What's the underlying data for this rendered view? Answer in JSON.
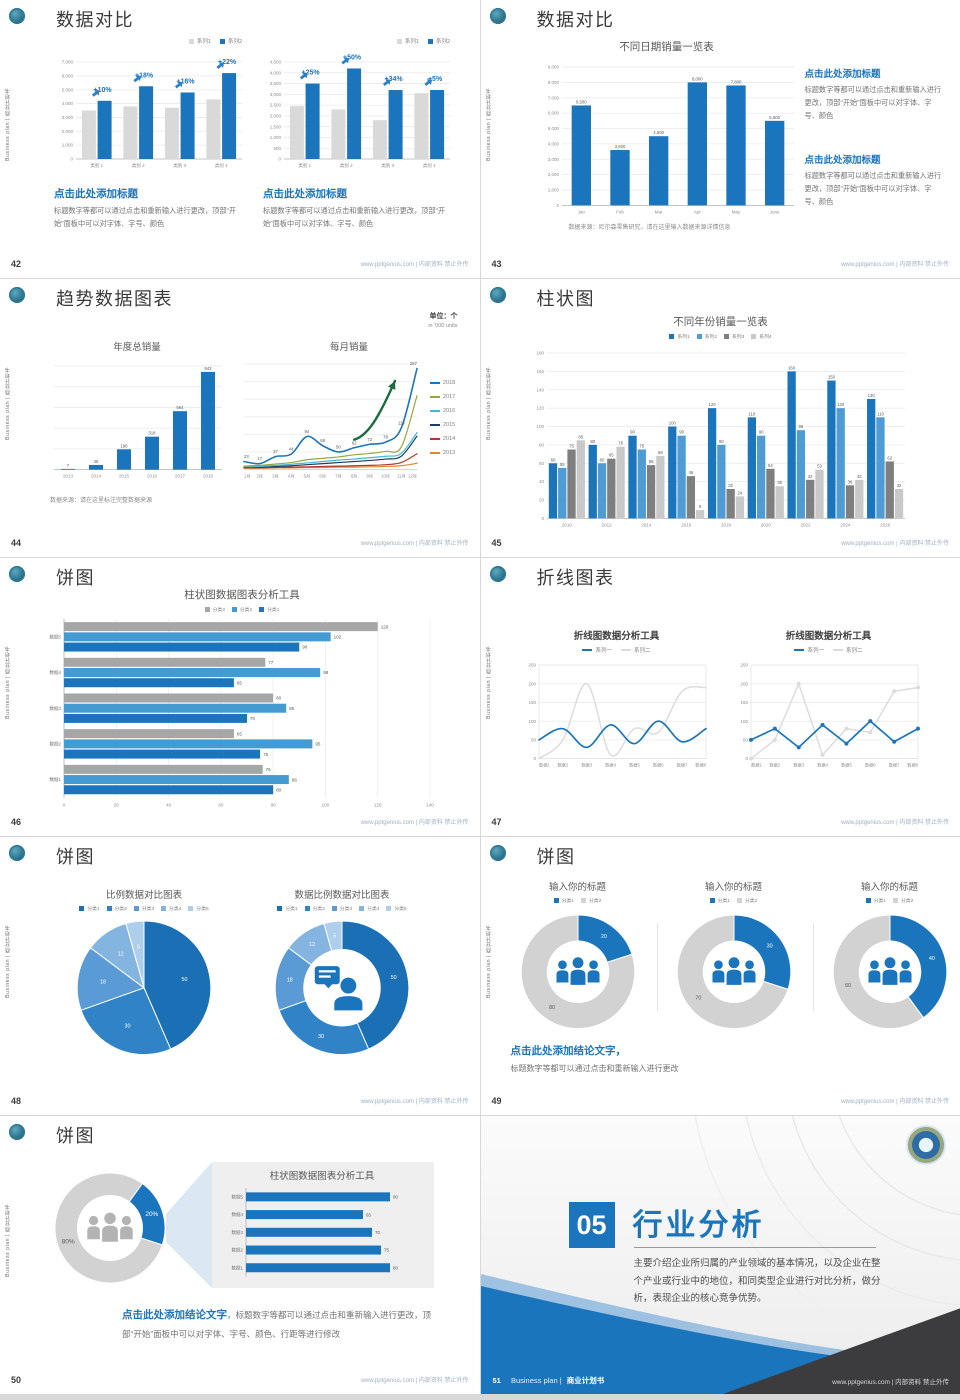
{
  "accent": "#1b75bc",
  "side_text": "Business plan | 商业计划书",
  "footer_text": "www.pptgenius.com | 内部资料 禁止外传",
  "slides": {
    "s42": {
      "page": "42",
      "title": "数据对比",
      "blocks": [
        {
          "heading": "点击此处添加标题",
          "body": "标题数字等都可以通过点击和重新输入进行更改，顶部“开始”面板中可以对字体、字号、颜色"
        },
        {
          "heading": "点击此处添加标题",
          "body": "标题数字等都可以通过点击和重新输入进行更改，顶部“开始”面板中可以对字体、字号、颜色"
        }
      ]
    },
    "s43": {
      "page": "43",
      "title": "数据对比",
      "source": "数据来源：尼尔森零售研究，请在这里输入数据来源详情信息",
      "blocks": [
        {
          "heading": "点击此处添加标题",
          "body": "标题数字等都可以通过点击和重新输入进行更改，顶部“开始”面板中可以对字体、字号、颜色"
        },
        {
          "heading": "点击此处添加标题",
          "body": "标题数字等都可以通过点击和重新输入进行更改，顶部“开始”面板中可以对字体、字号、颜色"
        }
      ]
    },
    "s44": {
      "page": "44",
      "title": "趋势数据图表",
      "unit1": "单位：个",
      "unit2": "in '000 units",
      "source": "数据来源：请在这里标注完整数据来源"
    },
    "s45": {
      "page": "45",
      "title": "柱状图"
    },
    "s46": {
      "page": "46",
      "title": "饼图"
    },
    "s47": {
      "page": "47",
      "title": "折线图表"
    },
    "s48": {
      "page": "48",
      "title": "饼图"
    },
    "s49": {
      "page": "49",
      "title": "饼图",
      "conclusion_heading": "点击此处添加结论文字，",
      "conclusion_body": "标题数字等都可以通过点击和重新输入进行更改"
    },
    "s50": {
      "page": "50",
      "title": "饼图",
      "conclusion_heading": "点击此处添加结论文字",
      "conclusion_body": "，标题数字等都可以通过点击和重新输入进行更改，顶部“开始”面板中可以对字体、字号、颜色、行距等进行修改"
    },
    "s51": {
      "page": "51",
      "number": "05",
      "title": "行业分析",
      "body": "主要介绍企业所归属的产业领域的基本情况，以及企业在整个产业或行业中的地位，和同类型企业进行对比分析，做分析，表现企业的核心竞争优势。",
      "footer_en": "Business plan |",
      "footer_cn": "商业计划书"
    }
  },
  "chart_data": [
    {
      "mount": "c42a",
      "type": "bar",
      "title": "",
      "legend_pos": "topright",
      "categories": [
        "类别 1",
        "类别 2",
        "类别 3",
        "类别 4"
      ],
      "ylim": [
        0,
        7000
      ],
      "ystep": 1000,
      "tick_format": "comma",
      "annotations": [
        "+10%",
        "+18%",
        "+16%",
        "+22%"
      ],
      "series": [
        {
          "name": "系列1",
          "color": "#d9d9d9",
          "values": [
            3500,
            3800,
            3700,
            4300
          ]
        },
        {
          "name": "系列2",
          "color": "#1b75bc",
          "values": [
            4200,
            5250,
            4800,
            6200
          ]
        }
      ]
    },
    {
      "mount": "c42b",
      "type": "bar",
      "title": "",
      "legend_pos": "topright",
      "categories": [
        "类别 1",
        "类别 2",
        "类别 3",
        "类别 4"
      ],
      "ylim": [
        0,
        4500
      ],
      "ystep": 500,
      "tick_format": "comma",
      "annotations": [
        "+25%",
        "+50%",
        "+34%",
        "+5%"
      ],
      "series": [
        {
          "name": "系列1",
          "color": "#d9d9d9",
          "values": [
            2450,
            2300,
            1800,
            3050
          ]
        },
        {
          "name": "系列2",
          "color": "#1b75bc",
          "values": [
            3500,
            4200,
            3200,
            3200
          ]
        }
      ]
    },
    {
      "mount": "c43",
      "type": "bar",
      "title": "不同日期销量一览表",
      "title_size": 10.5,
      "legend_pos": "none",
      "categories": [
        "Jan",
        "Feb",
        "Mar",
        "Apr",
        "May",
        "June"
      ],
      "ylim": [
        0,
        9000
      ],
      "ystep": 1000,
      "tick_format": "comma",
      "series": [
        {
          "name": "销量",
          "color": "#1b75bc",
          "labels": true,
          "values": [
            6500,
            3600,
            4500,
            8000,
            7800,
            5500
          ]
        }
      ]
    },
    {
      "mount": "c44a",
      "type": "bar",
      "title": "年度总销量",
      "legend_pos": "none",
      "yticks": false,
      "categories": [
        "2013",
        "2014",
        "2015",
        "2016",
        "2017",
        "2018"
      ],
      "ylim": [
        0,
        1000
      ],
      "ystep": 200,
      "series": [
        {
          "name": "年度总销量",
          "color": "#1b75bc",
          "labels": true,
          "values": [
            7,
            45,
            196,
            318,
            564,
            943
          ]
        }
      ]
    },
    {
      "mount": "c44b",
      "type": "line",
      "title": "每月销量",
      "legend_pos": "right",
      "legend_marker": "line",
      "yticks": false,
      "smooth": true,
      "arrow": true,
      "categories": [
        "1月",
        "2月",
        "3月",
        "4月",
        "5月",
        "6月",
        "7月",
        "8月",
        "9月",
        "10月",
        "11月",
        "12月"
      ],
      "ylim": [
        0,
        300
      ],
      "ystep": 50,
      "series": [
        {
          "name": "2018",
          "color": "#1b75bc",
          "w": 1.6,
          "labels": true,
          "values": [
            23,
            17,
            37,
            44,
            94,
            68,
            50,
            62,
            72,
            78,
            118,
            287
          ]
        },
        {
          "name": "2017",
          "color": "#98a839",
          "values": [
            10,
            12,
            16,
            20,
            28,
            32,
            36,
            42,
            46,
            52,
            64,
            210
          ]
        },
        {
          "name": "2016",
          "color": "#45b5d6",
          "values": [
            8,
            9,
            12,
            15,
            19,
            23,
            27,
            30,
            34,
            38,
            46,
            105
          ]
        },
        {
          "name": "2015",
          "color": "#1a3f63",
          "values": [
            6,
            7,
            9,
            11,
            14,
            17,
            20,
            23,
            26,
            30,
            38,
            95
          ]
        },
        {
          "name": "2014",
          "color": "#a93c2c",
          "values": [
            5,
            5,
            6,
            7,
            8,
            9,
            10,
            11,
            12,
            14,
            20,
            45
          ]
        },
        {
          "name": "2013",
          "color": "#e3872f",
          "values": [
            4,
            4,
            5,
            5,
            6,
            6,
            7,
            7,
            8,
            9,
            11,
            18
          ]
        }
      ]
    },
    {
      "mount": "c45",
      "type": "bar",
      "title": "不同年份销量一览表",
      "title_size": 10.5,
      "legend_pos": "topcenter",
      "legend_size": "sm",
      "categories": [
        "2010",
        "2012",
        "2014",
        "2016",
        "2018",
        "2020",
        "2022",
        "2024",
        "2026"
      ],
      "ylim": [
        0,
        180
      ],
      "ystep": 20,
      "series": [
        {
          "name": "系列1",
          "color": "#1b75bc",
          "labels": true,
          "values": [
            60,
            80,
            90,
            100,
            120,
            110,
            160,
            150,
            130
          ]
        },
        {
          "name": "系列2",
          "color": "#4f9bd3",
          "labels": true,
          "values": [
            55,
            60,
            75,
            90,
            80,
            90,
            96,
            120,
            110
          ]
        },
        {
          "name": "系列3",
          "color": "#7f7f7f",
          "labels": true,
          "values": [
            75,
            65,
            58,
            46,
            32,
            54,
            42,
            36,
            62
          ]
        },
        {
          "name": "系列4",
          "color": "#c9c9c9",
          "labels": true,
          "values": [
            85,
            78,
            68,
            9,
            24,
            35,
            53,
            42,
            32
          ]
        }
      ]
    },
    {
      "mount": "c46",
      "type": "hbar",
      "title": "柱状图数据图表分析工具",
      "title_size": 10.5,
      "legend_pos": "topcenter",
      "legend_size": "sm",
      "categories": [
        "数据5",
        "数据4",
        "数据3",
        "数据2",
        "数据1"
      ],
      "xlim": [
        0,
        140
      ],
      "xstep": 20,
      "xticks": true,
      "series": [
        {
          "name": "分类3",
          "color": "#a6a6a6",
          "labels": true,
          "values": [
            120,
            77,
            80,
            65,
            76
          ]
        },
        {
          "name": "分类2",
          "color": "#449bd1",
          "labels": true,
          "values": [
            102,
            98,
            85,
            95,
            86
          ]
        },
        {
          "name": "分类1",
          "color": "#1b75bc",
          "labels": true,
          "values": [
            90,
            65,
            70,
            75,
            80
          ]
        }
      ]
    },
    {
      "mount": "c47a",
      "type": "line",
      "title": "折线图数据分析工具",
      "title_bold": true,
      "legend_pos": "topcenter",
      "legend_marker": "line",
      "yticks": true,
      "smooth": true,
      "box": true,
      "categories": [
        "数据1",
        "数据2",
        "数据3",
        "数据4",
        "数据5",
        "数据6",
        "数据7",
        "数据8"
      ],
      "ylim": [
        0,
        250
      ],
      "ystep": 50,
      "series": [
        {
          "name": "系列一",
          "color": "#1b75bc",
          "w": 1.7,
          "values": [
            50,
            80,
            30,
            90,
            40,
            100,
            45,
            80
          ]
        },
        {
          "name": "系列二",
          "color": "#dcdcdc",
          "w": 1.5,
          "values": [
            0,
            50,
            200,
            10,
            80,
            70,
            180,
            190
          ]
        }
      ]
    },
    {
      "mount": "c47b",
      "type": "line",
      "title": "折线图数据分析工具",
      "title_bold": true,
      "legend_pos": "topcenter",
      "legend_marker": "line",
      "yticks": true,
      "smooth": false,
      "box": true,
      "categories": [
        "数据1",
        "数据2",
        "数据3",
        "数据4",
        "数据5",
        "数据6",
        "数据7",
        "数据8"
      ],
      "ylim": [
        0,
        250
      ],
      "ystep": 50,
      "series": [
        {
          "name": "系列一",
          "color": "#1b75bc",
          "w": 1.7,
          "markers": true,
          "values": [
            50,
            80,
            30,
            90,
            40,
            100,
            45,
            80
          ]
        },
        {
          "name": "系列二",
          "color": "#dcdcdc",
          "w": 1.5,
          "markers": true,
          "values": [
            0,
            50,
            200,
            10,
            80,
            70,
            180,
            190
          ]
        }
      ]
    },
    {
      "mount": "c48a",
      "type": "pie",
      "title": "比例数据对比图表",
      "legend_pos": "topcenter",
      "legend_size": "sm",
      "labels": [
        "分类1",
        "分类2",
        "分类3",
        "分类4",
        "分类5"
      ],
      "values": [
        50,
        30,
        18,
        12,
        5
      ],
      "pad": 6,
      "label_color": "#ffffff",
      "colors": [
        "#1b6fb5",
        "#2f83c6",
        "#5b9bd5",
        "#84b4e0",
        "#aecfeb"
      ]
    },
    {
      "mount": "c48b",
      "type": "pie",
      "title": "数据比例数据对比图表",
      "legend_pos": "topcenter",
      "legend_size": "sm",
      "labels": [
        "分类1",
        "分类2",
        "分类3",
        "分类4",
        "分类5"
      ],
      "values": [
        50,
        30,
        18,
        12,
        5
      ],
      "pad": 6,
      "label_color": "#ffffff",
      "colors": [
        "#1b6fb5",
        "#2f83c6",
        "#5b9bd5",
        "#84b4e0",
        "#aecfeb"
      ],
      "donut": 0.58,
      "icon": "person-chat",
      "icon_color": "#1b75bc"
    },
    {
      "mount": "c49a",
      "type": "pie",
      "title": "输入你的标题",
      "legend_pos": "topcenter",
      "legend_size": "sm",
      "labels": [
        "分类1",
        "分类2"
      ],
      "values": [
        20,
        80
      ],
      "pad": 8,
      "colors": [
        "#1b75bc",
        "#d2d2d2"
      ],
      "donut": 0.55,
      "icon": "people",
      "icon_color": "#1b75bc"
    },
    {
      "mount": "c49b",
      "type": "pie",
      "title": "输入你的标题",
      "legend_pos": "topcenter",
      "legend_size": "sm",
      "labels": [
        "分类1",
        "分类2"
      ],
      "values": [
        30,
        70
      ],
      "pad": 8,
      "colors": [
        "#1b75bc",
        "#d2d2d2"
      ],
      "donut": 0.55,
      "icon": "people",
      "icon_color": "#1b75bc"
    },
    {
      "mount": "c49c",
      "type": "pie",
      "title": "输入你的标题",
      "legend_pos": "topcenter",
      "legend_size": "sm",
      "labels": [
        "分类1",
        "分类2"
      ],
      "values": [
        40,
        60
      ],
      "pad": 8,
      "colors": [
        "#1b75bc",
        "#d2d2d2"
      ],
      "donut": 0.55,
      "icon": "people",
      "icon_color": "#1b75bc"
    },
    {
      "mount": "c50a",
      "type": "pie",
      "legend_pos": "none",
      "labels": [
        "分类1",
        "分类2"
      ],
      "values": [
        20,
        80
      ],
      "slice_labels": [
        "20%",
        "80%"
      ],
      "start": -54,
      "pad": 3,
      "label_size": 6.5,
      "colors": [
        "#1b75bc",
        "#d2d2d2"
      ],
      "donut": 0.6,
      "icon": "people",
      "icon_color": "#b3b3b3"
    },
    {
      "mount": "c50b",
      "type": "hbar",
      "title": "柱状图数据图表分析工具",
      "legend_pos": "none",
      "categories": [
        "数据5",
        "数据4",
        "数据3",
        "数据2",
        "数据1"
      ],
      "xlim": [
        0,
        90
      ],
      "xticks": false,
      "series": [
        {
          "name": "数据",
          "color": "#1b75bc",
          "labels": true,
          "values": [
            80,
            65,
            70,
            75,
            80
          ]
        }
      ]
    }
  ]
}
